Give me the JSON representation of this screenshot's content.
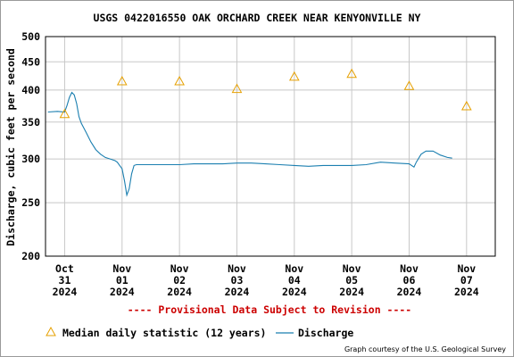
{
  "chart_data": {
    "type": "line",
    "title": "USGS 0422016550 OAK ORCHARD CREEK NEAR KENYONVILLE NY",
    "ylabel": "Discharge, cubic feet per second",
    "xlabel": "",
    "ylim": [
      200,
      500
    ],
    "y_scale": "log",
    "y_ticks": [
      200,
      250,
      300,
      350,
      400,
      450,
      500
    ],
    "x_ticks": [
      {
        "date": "2024-10-31",
        "label": [
          "Oct",
          "31",
          "2024"
        ]
      },
      {
        "date": "2024-11-01",
        "label": [
          "Nov",
          "01",
          "2024"
        ]
      },
      {
        "date": "2024-11-02",
        "label": [
          "Nov",
          "02",
          "2024"
        ]
      },
      {
        "date": "2024-11-03",
        "label": [
          "Nov",
          "03",
          "2024"
        ]
      },
      {
        "date": "2024-11-04",
        "label": [
          "Nov",
          "04",
          "2024"
        ]
      },
      {
        "date": "2024-11-05",
        "label": [
          "Nov",
          "05",
          "2024"
        ]
      },
      {
        "date": "2024-11-06",
        "label": [
          "Nov",
          "06",
          "2024"
        ]
      },
      {
        "date": "2024-11-07",
        "label": [
          "Nov",
          "07",
          "2024"
        ]
      }
    ],
    "grid": true,
    "legend_position": "bottom",
    "series": [
      {
        "name": "Median daily statistic (12 years)",
        "marker": "triangle",
        "color": "#e6a000",
        "points": [
          {
            "x": "2024-10-31",
            "y": 362
          },
          {
            "x": "2024-11-01",
            "y": 415
          },
          {
            "x": "2024-11-02",
            "y": 415
          },
          {
            "x": "2024-11-03",
            "y": 402
          },
          {
            "x": "2024-11-04",
            "y": 423
          },
          {
            "x": "2024-11-05",
            "y": 428
          },
          {
            "x": "2024-11-06",
            "y": 407
          },
          {
            "x": "2024-11-07",
            "y": 374
          }
        ]
      },
      {
        "name": "Discharge",
        "color": "#1b7fb0",
        "points": [
          {
            "x": "2024-10-30T17:00",
            "y": 365
          },
          {
            "x": "2024-10-30T21:00",
            "y": 366
          },
          {
            "x": "2024-10-31T00:00",
            "y": 365
          },
          {
            "x": "2024-10-31T01:00",
            "y": 375
          },
          {
            "x": "2024-10-31T02:00",
            "y": 388
          },
          {
            "x": "2024-10-31T03:00",
            "y": 396
          },
          {
            "x": "2024-10-31T04:00",
            "y": 392
          },
          {
            "x": "2024-10-31T05:00",
            "y": 378
          },
          {
            "x": "2024-10-31T06:00",
            "y": 358
          },
          {
            "x": "2024-10-31T07:00",
            "y": 348
          },
          {
            "x": "2024-10-31T09:00",
            "y": 335
          },
          {
            "x": "2024-10-31T11:00",
            "y": 322
          },
          {
            "x": "2024-10-31T13:00",
            "y": 312
          },
          {
            "x": "2024-10-31T15:00",
            "y": 306
          },
          {
            "x": "2024-10-31T17:00",
            "y": 302
          },
          {
            "x": "2024-10-31T19:00",
            "y": 300
          },
          {
            "x": "2024-10-31T21:00",
            "y": 298
          },
          {
            "x": "2024-10-31T22:00",
            "y": 296
          },
          {
            "x": "2024-10-31T23:00",
            "y": 292
          },
          {
            "x": "2024-11-01T00:00",
            "y": 288
          },
          {
            "x": "2024-11-01T01:00",
            "y": 274
          },
          {
            "x": "2024-11-01T02:00",
            "y": 258
          },
          {
            "x": "2024-11-01T03:00",
            "y": 265
          },
          {
            "x": "2024-11-01T04:00",
            "y": 282
          },
          {
            "x": "2024-11-01T05:00",
            "y": 292
          },
          {
            "x": "2024-11-01T06:00",
            "y": 293
          },
          {
            "x": "2024-11-01T12:00",
            "y": 293
          },
          {
            "x": "2024-11-01T18:00",
            "y": 293
          },
          {
            "x": "2024-11-02T00:00",
            "y": 293
          },
          {
            "x": "2024-11-02T06:00",
            "y": 294
          },
          {
            "x": "2024-11-02T12:00",
            "y": 294
          },
          {
            "x": "2024-11-02T18:00",
            "y": 294
          },
          {
            "x": "2024-11-03T00:00",
            "y": 295
          },
          {
            "x": "2024-11-03T06:00",
            "y": 295
          },
          {
            "x": "2024-11-03T12:00",
            "y": 294
          },
          {
            "x": "2024-11-03T18:00",
            "y": 293
          },
          {
            "x": "2024-11-04T00:00",
            "y": 292
          },
          {
            "x": "2024-11-04T06:00",
            "y": 291
          },
          {
            "x": "2024-11-04T12:00",
            "y": 292
          },
          {
            "x": "2024-11-04T18:00",
            "y": 292
          },
          {
            "x": "2024-11-05T00:00",
            "y": 292
          },
          {
            "x": "2024-11-05T06:00",
            "y": 293
          },
          {
            "x": "2024-11-05T12:00",
            "y": 296
          },
          {
            "x": "2024-11-05T18:00",
            "y": 295
          },
          {
            "x": "2024-11-06T00:00",
            "y": 294
          },
          {
            "x": "2024-11-06T02:00",
            "y": 290
          },
          {
            "x": "2024-11-06T03:00",
            "y": 296
          },
          {
            "x": "2024-11-06T05:00",
            "y": 306
          },
          {
            "x": "2024-11-06T07:00",
            "y": 310
          },
          {
            "x": "2024-11-06T10:00",
            "y": 310
          },
          {
            "x": "2024-11-06T13:00",
            "y": 305
          },
          {
            "x": "2024-11-06T16:00",
            "y": 302
          },
          {
            "x": "2024-11-06T18:00",
            "y": 301
          }
        ]
      }
    ],
    "notice": "---- Provisional Data Subject to Revision ----",
    "credit": "Graph courtesy of the U.S. Geological Survey"
  }
}
